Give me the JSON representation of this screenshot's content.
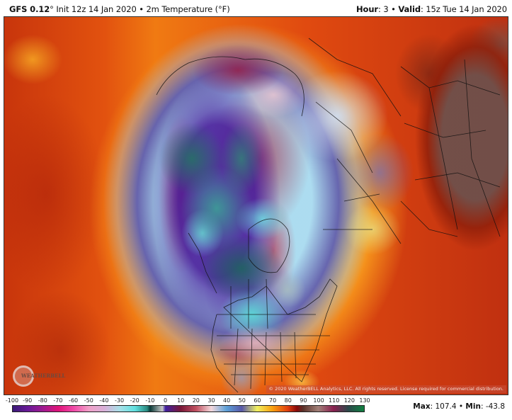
{
  "header": {
    "model": "GFS 0.12",
    "degree": "°",
    "init_text": " Init 12z 14 Jan 2020 • 2m Temperature (°F)",
    "hour_label": "Hour",
    "hour_value": ": 3 • ",
    "valid_label": "Valid",
    "valid_value": ": 15z Tue 14 Jan 2020"
  },
  "map": {
    "projection": "polar stereographic, Northern Hemisphere",
    "copyright": "© 2020 WeatherBELL Analytics, LLC. All rights reserved. License required for commercial distribution.",
    "logo_text": "WEATHERBELL"
  },
  "footer": {
    "max_label": "Max",
    "max_value": ": 107.4 • ",
    "min_label": "Min",
    "min_value": ": -43.8"
  },
  "colorbar": {
    "unit": "°F",
    "ticks": [
      "-100",
      "-90",
      "-80",
      "-70",
      "-60",
      "-50",
      "-40",
      "-30",
      "-20",
      "-10",
      "0",
      "10",
      "20",
      "30",
      "40",
      "50",
      "60",
      "70",
      "80",
      "90",
      "100",
      "110",
      "120",
      "130"
    ],
    "stops": [
      {
        "v": -100,
        "c": "#3a1a78"
      },
      {
        "v": -90,
        "c": "#6a1a98"
      },
      {
        "v": -80,
        "c": "#a01a90"
      },
      {
        "v": -70,
        "c": "#e0147a"
      },
      {
        "v": -60,
        "c": "#f04aa8"
      },
      {
        "v": -50,
        "c": "#f0a0c8"
      },
      {
        "v": -40,
        "c": "#d8b0d8"
      },
      {
        "v": -30,
        "c": "#a8e0e8"
      },
      {
        "v": -20,
        "c": "#60e0e0"
      },
      {
        "v": -12,
        "c": "#2a8a80"
      },
      {
        "v": -10,
        "c": "#0a3a38"
      },
      {
        "v": -2,
        "c": "#c8c8c8"
      },
      {
        "v": 0,
        "c": "#4020a0"
      },
      {
        "v": 10,
        "c": "#7a1838"
      },
      {
        "v": 20,
        "c": "#c05060"
      },
      {
        "v": 30,
        "c": "#f4d8dc"
      },
      {
        "v": 40,
        "c": "#5ca0d8"
      },
      {
        "v": 50,
        "c": "#5858a8"
      },
      {
        "v": 60,
        "c": "#f0f060"
      },
      {
        "v": 70,
        "c": "#f8a010"
      },
      {
        "v": 80,
        "c": "#e04010"
      },
      {
        "v": 86,
        "c": "#8a0a0a"
      },
      {
        "v": 90,
        "c": "#5a3028"
      },
      {
        "v": 100,
        "c": "#a08078"
      },
      {
        "v": 110,
        "c": "#8a2050"
      },
      {
        "v": 120,
        "c": "#2a4a4a"
      },
      {
        "v": 130,
        "c": "#108040"
      }
    ]
  }
}
